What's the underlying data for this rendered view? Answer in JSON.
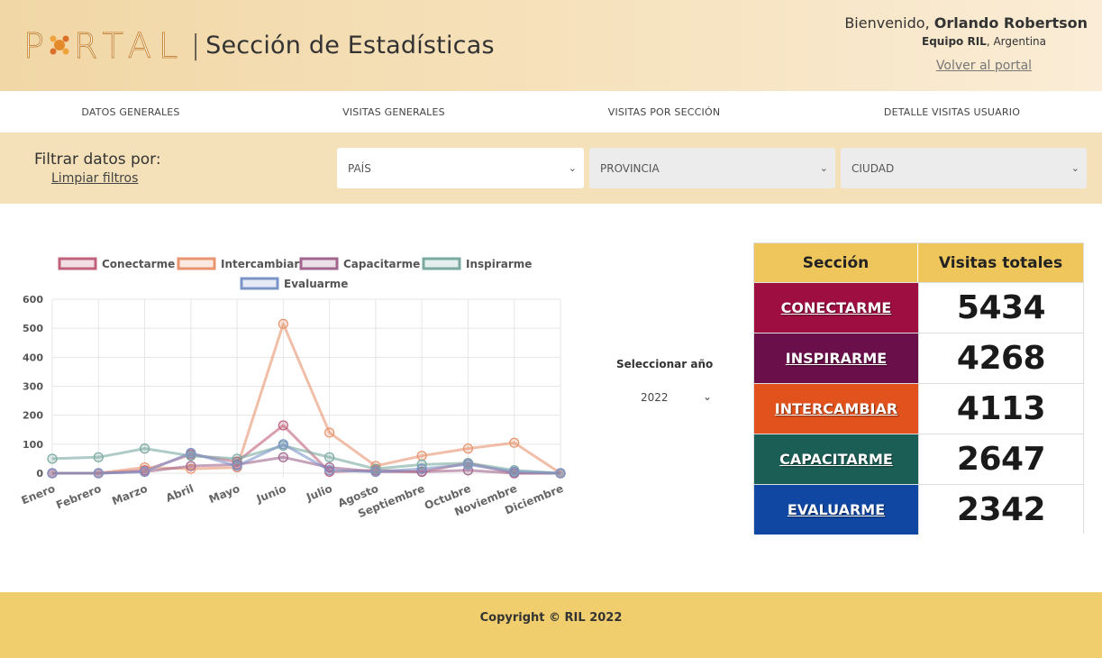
{
  "header": {
    "logo_text": "PORTAL",
    "title": "Sección de Estadísticas",
    "welcome": "Bienvenido,",
    "user_name": "Orlando Robertson",
    "team": "Equipo RIL",
    "country": "Argentina",
    "back_link": "Volver al portal"
  },
  "nav": {
    "items": [
      {
        "label": "DATOS GENERALES"
      },
      {
        "label": "VISITAS GENERALES"
      },
      {
        "label": "VISITAS POR SECCIÓN"
      },
      {
        "label": "DETALLE VISITAS USUARIO"
      }
    ]
  },
  "filters": {
    "label": "Filtrar datos por:",
    "clear": "Limpiar filtros",
    "country": "PAÍS",
    "province": "PROVINCIA",
    "city": "CIUDAD"
  },
  "year": {
    "label": "Seleccionar año",
    "value": "2022"
  },
  "stats": {
    "col_section": "Sección",
    "col_visits": "Visitas totales",
    "rows": [
      {
        "section": "CONECTARME",
        "visits": "5434",
        "color": "#9e0e40"
      },
      {
        "section": "INSPIRARME",
        "visits": "4268",
        "color": "#6a0f4a"
      },
      {
        "section": "INTERCAMBIAR",
        "visits": "4113",
        "color": "#e2521d"
      },
      {
        "section": "CAPACITARME",
        "visits": "2647",
        "color": "#1b5e55"
      },
      {
        "section": "EVALUARME",
        "visits": "2342",
        "color": "#0f47a3"
      }
    ]
  },
  "footer": {
    "copyright": "Copyright © RIL 2022"
  },
  "chart_data": {
    "type": "line",
    "categories": [
      "Enero",
      "Febrero",
      "Marzo",
      "Abril",
      "Mayo",
      "Junio",
      "Julio",
      "Agosto",
      "Septiembre",
      "Octubre",
      "Noviembre",
      "Diciembre"
    ],
    "ylim": [
      0,
      600
    ],
    "yticks": [
      0,
      100,
      200,
      300,
      400,
      500,
      600
    ],
    "grid": true,
    "legend": "top",
    "series": [
      {
        "name": "Conectarme",
        "color": "#c0607a",
        "values": [
          0,
          0,
          10,
          65,
          40,
          165,
          5,
          10,
          5,
          35,
          0,
          0
        ]
      },
      {
        "name": "Intercambiar",
        "color": "#e8956f",
        "values": [
          0,
          0,
          20,
          15,
          20,
          515,
          140,
          25,
          60,
          85,
          105,
          0
        ]
      },
      {
        "name": "Capacitarme",
        "color": "#a0668e",
        "values": [
          0,
          0,
          5,
          25,
          30,
          55,
          20,
          5,
          5,
          10,
          0,
          0
        ]
      },
      {
        "name": "Inspirarme",
        "color": "#7aa9a0",
        "values": [
          50,
          55,
          85,
          60,
          50,
          95,
          55,
          15,
          30,
          35,
          10,
          0
        ]
      },
      {
        "name": "Evaluarme",
        "color": "#7b95c9",
        "values": [
          0,
          0,
          5,
          70,
          25,
          100,
          10,
          5,
          15,
          30,
          5,
          0
        ]
      }
    ]
  }
}
